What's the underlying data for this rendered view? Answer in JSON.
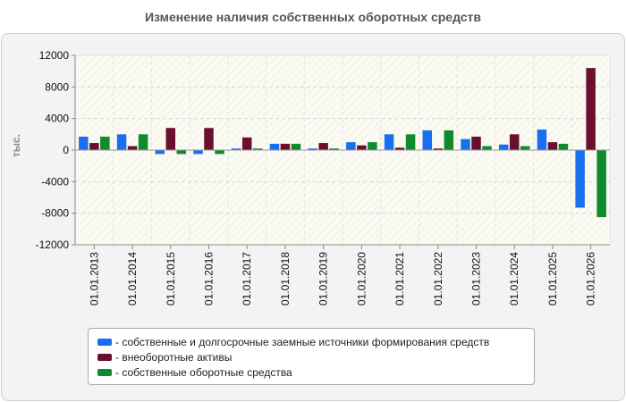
{
  "chart_data": {
    "type": "bar",
    "title": "Изменение наличия собственных оборотных средств",
    "ylabel": "тыс.",
    "xlabel": "",
    "ylim": [
      -12000,
      12000
    ],
    "yticks": [
      12000,
      8000,
      4000,
      0,
      -4000,
      -8000,
      -12000
    ],
    "grid": true,
    "legend_position": "bottom",
    "categories": [
      "01.01.2013",
      "01.01.2014",
      "01.01.2015",
      "01.01.2016",
      "01.01.2017",
      "01.01.2018",
      "01.01.2019",
      "01.01.2020",
      "01.01.2021",
      "01.01.2022",
      "01.01.2023",
      "01.01.2024",
      "01.01.2025",
      "01.01.2026"
    ],
    "series": [
      {
        "name": "- собственные и долгосрочные заемные источники формирования средств",
        "color": "#1a6ef0",
        "values": [
          1700,
          2000,
          -500,
          -500,
          200,
          800,
          200,
          1000,
          2000,
          2500,
          1400,
          700,
          2600,
          -7300
        ]
      },
      {
        "name": "- внеоборотные активы",
        "color": "#6b0f2e",
        "values": [
          900,
          500,
          2800,
          2800,
          1600,
          800,
          900,
          600,
          300,
          200,
          1700,
          2000,
          1000,
          10400
        ]
      },
      {
        "name": "- собственные оборотные средства",
        "color": "#0f8a2c",
        "values": [
          1700,
          2000,
          -500,
          -500,
          200,
          800,
          200,
          1000,
          2000,
          2500,
          500,
          500,
          800,
          -8500
        ]
      }
    ]
  }
}
